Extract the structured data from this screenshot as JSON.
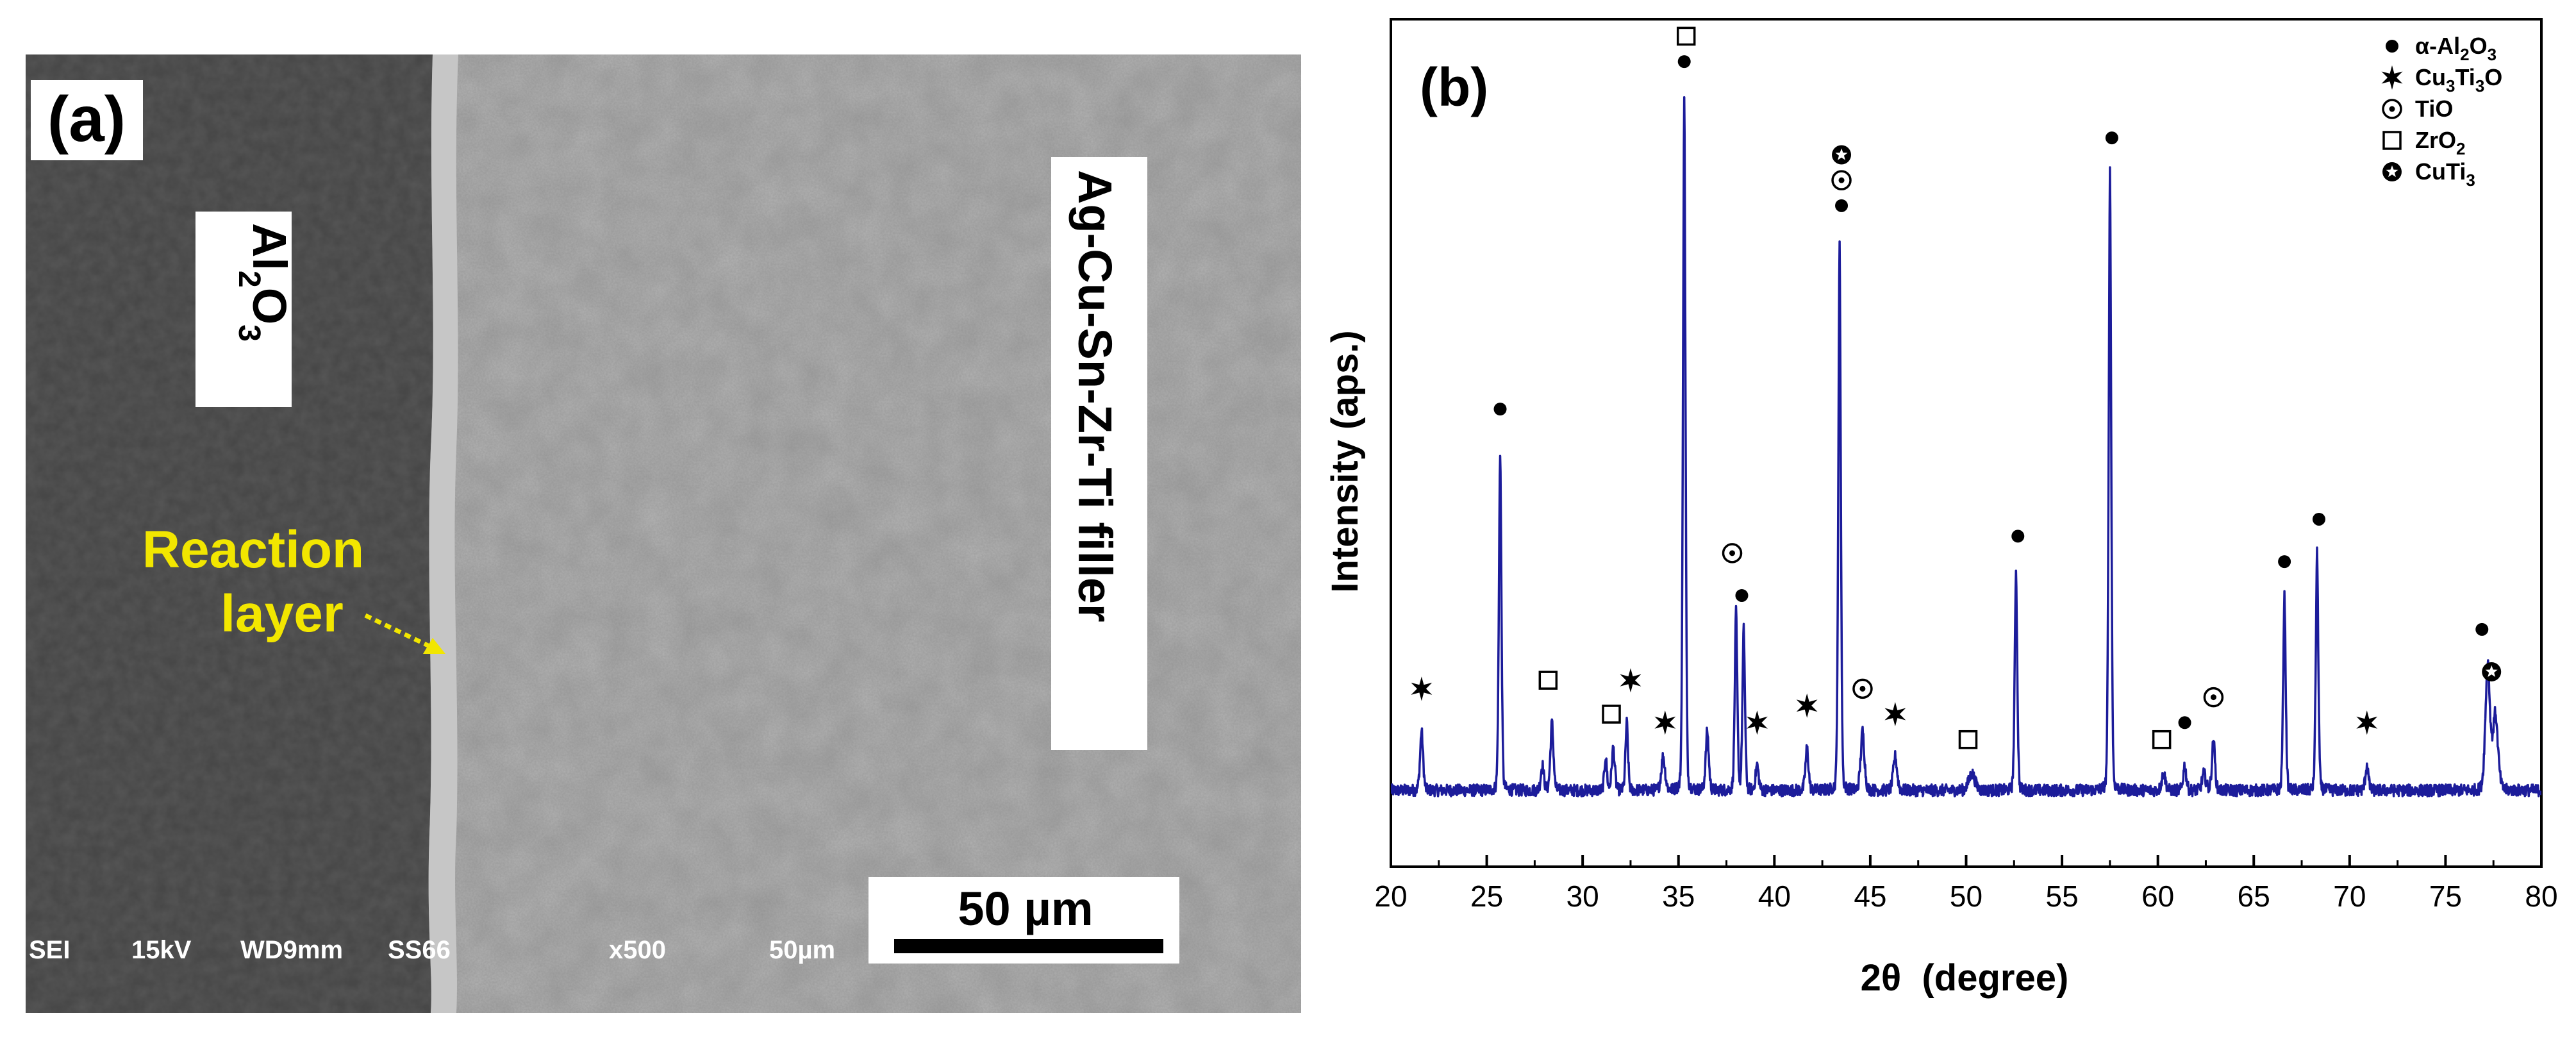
{
  "panel_a": {
    "label": "(a)",
    "al2o3": {
      "main": "Al",
      "sub1": "2",
      "mid": "O",
      "sub2": "3"
    },
    "filler_label": "Ag-Cu-Sn-Zr-Ti filler",
    "reaction_label_1": "Reaction",
    "reaction_label_2": "layer",
    "scale_bar_label": "50 µm",
    "info_bar": [
      "SEI",
      "15kV",
      "WD9mm",
      "SS66",
      "x500",
      "50µm"
    ],
    "colors": {
      "al2o3_region": "#4a4a4a",
      "filler_region": "#9d9d9d",
      "annotation": "#f2e600"
    }
  },
  "panel_b": {
    "label": "(b)",
    "legend": [
      {
        "symbol": "filled-circle",
        "text_parts": [
          "α-Al",
          "2",
          "O",
          "3"
        ]
      },
      {
        "symbol": "star-six",
        "text_parts": [
          "Cu",
          "3",
          "Ti",
          "3",
          "O"
        ]
      },
      {
        "symbol": "circled-dot",
        "text_parts": [
          "TiO"
        ]
      },
      {
        "symbol": "open-square",
        "text_parts": [
          "ZrO",
          "2"
        ]
      },
      {
        "symbol": "circled-star",
        "text_parts": [
          "CuTi",
          "3"
        ]
      }
    ]
  },
  "chart_data": {
    "type": "line",
    "xlabel": "2θ  (degree)",
    "ylabel": "Intensity (aps.)",
    "xlim": [
      20,
      80
    ],
    "ylim": [
      0,
      100
    ],
    "xticks": [
      20,
      25,
      30,
      35,
      40,
      45,
      50,
      55,
      60,
      65,
      70,
      75,
      80
    ],
    "y_ticks_shown": false,
    "line_color": "#1c1c9a",
    "baseline": 9,
    "peaks": [
      {
        "x": 21.6,
        "y": 16,
        "w": 0.12
      },
      {
        "x": 25.7,
        "y": 49,
        "w": 0.1
      },
      {
        "x": 27.9,
        "y": 12,
        "w": 0.12
      },
      {
        "x": 28.4,
        "y": 17,
        "w": 0.12
      },
      {
        "x": 31.2,
        "y": 13,
        "w": 0.1
      },
      {
        "x": 31.6,
        "y": 14,
        "w": 0.12
      },
      {
        "x": 32.3,
        "y": 17,
        "w": 0.1
      },
      {
        "x": 34.2,
        "y": 13,
        "w": 0.15
      },
      {
        "x": 35.3,
        "y": 91,
        "w": 0.1
      },
      {
        "x": 36.5,
        "y": 16,
        "w": 0.12
      },
      {
        "x": 38.0,
        "y": 30,
        "w": 0.1
      },
      {
        "x": 38.4,
        "y": 28,
        "w": 0.1
      },
      {
        "x": 39.1,
        "y": 12,
        "w": 0.12
      },
      {
        "x": 41.7,
        "y": 14,
        "w": 0.12
      },
      {
        "x": 43.4,
        "y": 74,
        "w": 0.1
      },
      {
        "x": 44.6,
        "y": 16,
        "w": 0.15
      },
      {
        "x": 46.3,
        "y": 13,
        "w": 0.15
      },
      {
        "x": 50.3,
        "y": 11,
        "w": 0.25
      },
      {
        "x": 52.6,
        "y": 35,
        "w": 0.1
      },
      {
        "x": 57.5,
        "y": 82,
        "w": 0.1
      },
      {
        "x": 60.3,
        "y": 11,
        "w": 0.15
      },
      {
        "x": 61.4,
        "y": 12,
        "w": 0.12
      },
      {
        "x": 62.4,
        "y": 11,
        "w": 0.15
      },
      {
        "x": 62.9,
        "y": 15,
        "w": 0.12
      },
      {
        "x": 66.6,
        "y": 32,
        "w": 0.1
      },
      {
        "x": 68.3,
        "y": 37,
        "w": 0.1
      },
      {
        "x": 70.9,
        "y": 12,
        "w": 0.12
      },
      {
        "x": 77.2,
        "y": 24,
        "w": 0.18
      },
      {
        "x": 77.6,
        "y": 18,
        "w": 0.2
      }
    ],
    "markers": [
      {
        "phase": "Cu3Ti3O",
        "x": 21.6,
        "y": 21
      },
      {
        "phase": "α-Al2O3",
        "x": 25.7,
        "y": 54
      },
      {
        "phase": "ZrO2",
        "x": 28.2,
        "y": 22
      },
      {
        "phase": "ZrO2",
        "x": 31.5,
        "y": 18
      },
      {
        "phase": "Cu3Ti3O",
        "x": 32.5,
        "y": 22
      },
      {
        "phase": "Cu3Ti3O",
        "x": 34.3,
        "y": 17
      },
      {
        "phase": "α-Al2O3",
        "x": 35.3,
        "y": 95
      },
      {
        "phase": "ZrO2",
        "x": 35.4,
        "y": 98
      },
      {
        "phase": "TiO",
        "x": 37.8,
        "y": 37
      },
      {
        "phase": "α-Al2O3",
        "x": 38.3,
        "y": 32
      },
      {
        "phase": "Cu3Ti3O",
        "x": 39.1,
        "y": 17
      },
      {
        "phase": "Cu3Ti3O",
        "x": 41.7,
        "y": 19
      },
      {
        "phase": "α-Al2O3",
        "x": 43.5,
        "y": 78
      },
      {
        "phase": "TiO",
        "x": 43.5,
        "y": 81
      },
      {
        "phase": "CuTi3",
        "x": 43.5,
        "y": 84
      },
      {
        "phase": "TiO",
        "x": 44.6,
        "y": 21
      },
      {
        "phase": "Cu3Ti3O",
        "x": 46.3,
        "y": 18
      },
      {
        "phase": "ZrO2",
        "x": 50.1,
        "y": 15
      },
      {
        "phase": "α-Al2O3",
        "x": 52.7,
        "y": 39
      },
      {
        "phase": "α-Al2O3",
        "x": 57.6,
        "y": 86
      },
      {
        "phase": "ZrO2",
        "x": 60.2,
        "y": 15
      },
      {
        "phase": "α-Al2O3",
        "x": 61.4,
        "y": 17
      },
      {
        "phase": "TiO",
        "x": 62.9,
        "y": 20
      },
      {
        "phase": "α-Al2O3",
        "x": 66.6,
        "y": 36
      },
      {
        "phase": "α-Al2O3",
        "x": 68.4,
        "y": 41
      },
      {
        "phase": "Cu3Ti3O",
        "x": 70.9,
        "y": 17
      },
      {
        "phase": "α-Al2O3",
        "x": 76.9,
        "y": 28
      },
      {
        "phase": "CuTi3",
        "x": 77.4,
        "y": 23
      }
    ]
  }
}
